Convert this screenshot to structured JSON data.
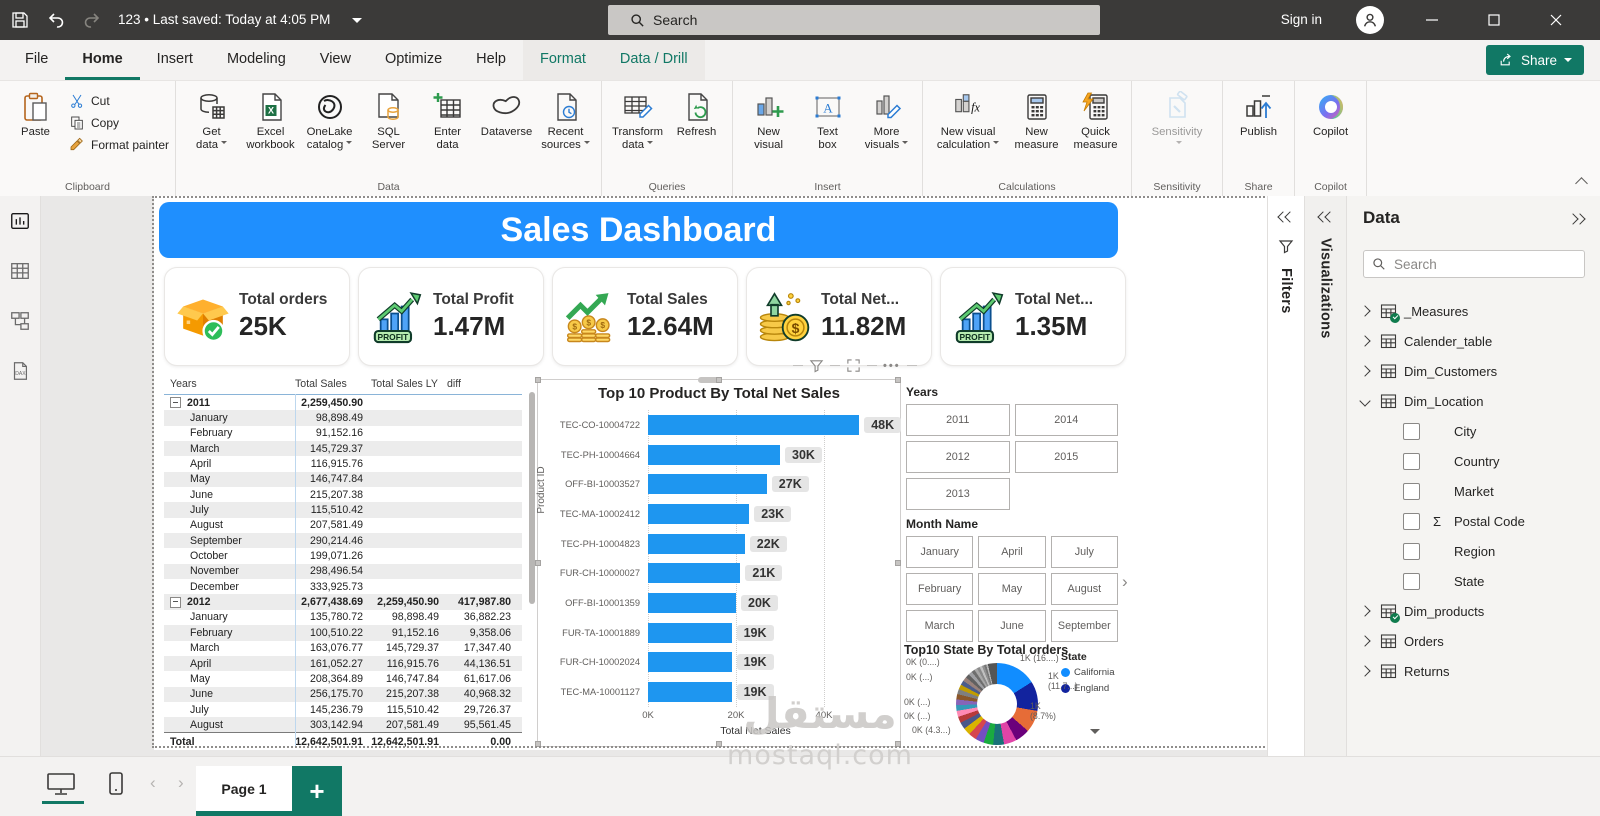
{
  "colors": {
    "accent_teal": "#117865",
    "banner_blue": "#1F8FFE",
    "bar_blue": "#1E96F0",
    "titlebar_dark": "#3B3A39"
  },
  "titlebar": {
    "doc_status": "123 • Last saved: Today at 4:05 PM",
    "search_placeholder": "Search",
    "sign_in_label": "Sign in"
  },
  "menu": {
    "items": [
      {
        "label": "File"
      },
      {
        "label": "Home",
        "active": true
      },
      {
        "label": "Insert"
      },
      {
        "label": "Modeling"
      },
      {
        "label": "View"
      },
      {
        "label": "Optimize"
      },
      {
        "label": "Help"
      },
      {
        "label": "Format",
        "accent": true
      },
      {
        "label": "Data / Drill",
        "accent": true
      }
    ],
    "share_label": "Share"
  },
  "ribbon": {
    "groups": [
      {
        "label": "Clipboard",
        "type": "clipboard",
        "paste": {
          "label": "Paste",
          "icon": "paste"
        },
        "small": [
          {
            "label": "Cut",
            "icon": "cut"
          },
          {
            "label": "Copy",
            "icon": "copy"
          },
          {
            "label": "Format painter",
            "icon": "fmtpainter"
          }
        ]
      },
      {
        "label": "Data",
        "buttons": [
          {
            "lines": [
              "Get",
              "data"
            ],
            "icon": "getdata",
            "dd": true
          },
          {
            "lines": [
              "Excel",
              "workbook"
            ],
            "icon": "excel"
          },
          {
            "lines": [
              "OneLake",
              "catalog"
            ],
            "icon": "onelake",
            "dd": true
          },
          {
            "lines": [
              "SQL",
              "Server"
            ],
            "icon": "sql"
          },
          {
            "lines": [
              "Enter",
              "data"
            ],
            "icon": "enterdata"
          },
          {
            "lines": [
              "Dataverse"
            ],
            "icon": "dataverse"
          },
          {
            "lines": [
              "Recent",
              "sources"
            ],
            "icon": "recent",
            "dd": true
          }
        ]
      },
      {
        "label": "Queries",
        "buttons": [
          {
            "lines": [
              "Transform",
              "data"
            ],
            "icon": "transform",
            "dd": true
          },
          {
            "lines": [
              "Refresh"
            ],
            "icon": "refresh"
          }
        ]
      },
      {
        "label": "Insert",
        "buttons": [
          {
            "lines": [
              "New",
              "visual"
            ],
            "icon": "newvisual"
          },
          {
            "lines": [
              "Text",
              "box"
            ],
            "icon": "textbox"
          },
          {
            "lines": [
              "More",
              "visuals"
            ],
            "icon": "morevisuals",
            "dd": true
          }
        ]
      },
      {
        "label": "Calculations",
        "buttons": [
          {
            "lines": [
              "New visual",
              "calculation"
            ],
            "icon": "newcalc",
            "dd": true,
            "wide": true
          },
          {
            "lines": [
              "New",
              "measure"
            ],
            "icon": "newmeasure"
          },
          {
            "lines": [
              "Quick",
              "measure"
            ],
            "icon": "quickmeasure"
          }
        ]
      },
      {
        "label": "Sensitivity",
        "buttons": [
          {
            "lines": [
              "Sensitivity"
            ],
            "icon": "sensitivity",
            "dd": true,
            "disabled": true,
            "wide": true
          }
        ]
      },
      {
        "label": "Share",
        "buttons": [
          {
            "lines": [
              "Publish"
            ],
            "icon": "publish"
          }
        ]
      },
      {
        "label": "Copilot",
        "buttons": [
          {
            "lines": [
              "Copilot"
            ],
            "icon": "copilot"
          }
        ]
      }
    ]
  },
  "view_strip": [
    {
      "name": "report-view",
      "active": true
    },
    {
      "name": "table-view"
    },
    {
      "name": "model-view"
    },
    {
      "name": "dax-query-view"
    }
  ],
  "canvas": {
    "banner_title": "Sales Dashboard",
    "cards": [
      {
        "title": "Total orders",
        "value": "25K",
        "icon": "orders-box"
      },
      {
        "title": "Total Profit",
        "value": "1.47M",
        "icon": "profit-chart"
      },
      {
        "title": "Total Sales",
        "value": "12.64M",
        "icon": "sales-coins"
      },
      {
        "title": "Total Net...",
        "value": "11.82M",
        "icon": "net-coins"
      },
      {
        "title": "Total Net...",
        "value": "1.35M",
        "icon": "profit-chart"
      }
    ],
    "matrix": {
      "headers": [
        "Years",
        "Total Sales",
        "Total Sales LY",
        "diff"
      ],
      "rows": [
        {
          "label": "2011",
          "year": true,
          "ts": "2,259,450.90",
          "ly": "",
          "diff": ""
        },
        {
          "label": "January",
          "ts": "98,898.49",
          "ly": "",
          "diff": ""
        },
        {
          "label": "February",
          "ts": "91,152.16",
          "ly": "",
          "diff": ""
        },
        {
          "label": "March",
          "ts": "145,729.37",
          "ly": "",
          "diff": ""
        },
        {
          "label": "April",
          "ts": "116,915.76",
          "ly": "",
          "diff": ""
        },
        {
          "label": "May",
          "ts": "146,747.84",
          "ly": "",
          "diff": ""
        },
        {
          "label": "June",
          "ts": "215,207.38",
          "ly": "",
          "diff": ""
        },
        {
          "label": "July",
          "ts": "115,510.42",
          "ly": "",
          "diff": ""
        },
        {
          "label": "August",
          "ts": "207,581.49",
          "ly": "",
          "diff": ""
        },
        {
          "label": "September",
          "ts": "290,214.46",
          "ly": "",
          "diff": ""
        },
        {
          "label": "October",
          "ts": "199,071.26",
          "ly": "",
          "diff": ""
        },
        {
          "label": "November",
          "ts": "298,496.54",
          "ly": "",
          "diff": ""
        },
        {
          "label": "December",
          "ts": "333,925.73",
          "ly": "",
          "diff": ""
        },
        {
          "label": "2012",
          "year": true,
          "ts": "2,677,438.69",
          "ly": "2,259,450.90",
          "diff": "417,987.80"
        },
        {
          "label": "January",
          "ts": "135,780.72",
          "ly": "98,898.49",
          "diff": "36,882.23"
        },
        {
          "label": "February",
          "ts": "100,510.22",
          "ly": "91,152.16",
          "diff": "9,358.06"
        },
        {
          "label": "March",
          "ts": "163,076.77",
          "ly": "145,729.37",
          "diff": "17,347.40"
        },
        {
          "label": "April",
          "ts": "161,052.27",
          "ly": "116,915.76",
          "diff": "44,136.51"
        },
        {
          "label": "May",
          "ts": "208,364.89",
          "ly": "146,747.84",
          "diff": "61,617.06"
        },
        {
          "label": "June",
          "ts": "256,175.70",
          "ly": "215,207.38",
          "diff": "40,968.32"
        },
        {
          "label": "July",
          "ts": "145,236.79",
          "ly": "115,510.42",
          "diff": "29,726.37"
        },
        {
          "label": "August",
          "ts": "303,142.94",
          "ly": "207,581.49",
          "diff": "95,561.45"
        }
      ],
      "total": {
        "label": "Total",
        "ts": "12,642,501.91",
        "ly": "12,642,501.91",
        "diff": "0.00"
      }
    },
    "bar_chart": {
      "type": "bar",
      "title": "Top 10 Product By Total Net Sales",
      "xlabel": "Total Net Sales",
      "ylabel": "Product ID",
      "x_ticks": [
        "0K",
        "20K",
        "40K"
      ],
      "xlim": [
        0,
        48
      ],
      "categories": [
        "TEC-CO-10004722",
        "TEC-PH-10004664",
        "OFF-BI-10003527",
        "TEC-MA-10002412",
        "TEC-PH-10004823",
        "FUR-CH-10000027",
        "OFF-BI-10001359",
        "FUR-TA-10001889",
        "FUR-CH-10002024",
        "TEC-MA-10001127"
      ],
      "values": [
        48,
        30,
        27,
        23,
        22,
        21,
        20,
        19,
        19,
        19
      ],
      "labels": [
        "48K",
        "30K",
        "27K",
        "23K",
        "22K",
        "21K",
        "20K",
        "19K",
        "19K",
        "19K"
      ],
      "bar_color": "#1E96F0"
    },
    "slicers": {
      "years": {
        "title": "Years",
        "options": [
          "2011",
          "2014",
          "2012",
          "2015",
          "2013"
        ]
      },
      "months": {
        "title": "Month Name",
        "options": [
          "January",
          "April",
          "July",
          "February",
          "May",
          "August",
          "March",
          "June",
          "September"
        ]
      }
    },
    "donut": {
      "type": "pie",
      "title": "Top10 State By Total orders",
      "legend_title": "State",
      "legend": [
        {
          "label": "California",
          "color": "#118DFF"
        },
        {
          "label": "England",
          "color": "#12239E"
        }
      ],
      "labels_right": [
        "1K (16....)",
        "1K (11.7...)",
        "1K (8.7%)"
      ],
      "labels_left": [
        "0K (0....)",
        "0K (...)",
        "0K (...)",
        "0K (...)",
        "0K (4.3...)"
      ],
      "segments": [
        [
          "#118DFF",
          16.0
        ],
        [
          "#12239E",
          11.7
        ],
        [
          "#E66C37",
          8.7
        ],
        [
          "#6B007B",
          5.8
        ],
        [
          "#E044A7",
          5.0
        ],
        [
          "#197278",
          4.3
        ],
        [
          "#1AAB40",
          3.8
        ],
        [
          "#744EC2",
          3.4
        ],
        [
          "#D64550",
          3.1
        ],
        [
          "#D9B300",
          2.9
        ],
        [
          "#4A588A",
          2.7
        ],
        [
          "#B73A3A",
          2.5
        ],
        [
          "#FF8AB4",
          2.4
        ],
        [
          "#3599B8",
          2.3
        ],
        [
          "#8764B8",
          2.2
        ],
        [
          "#8B572A",
          2.1
        ],
        [
          "#7F7F7F",
          2.0
        ],
        [
          "#C19C00",
          1.9
        ],
        [
          "#4C5D8A",
          1.8
        ],
        [
          "#98817B",
          1.7
        ],
        [
          "#606060",
          1.6
        ],
        [
          "#9FA0A4",
          1.5
        ],
        [
          "#6E6E6E",
          1.3
        ],
        [
          "#A8A8A8",
          1.2
        ],
        [
          "#8A8A8A",
          1.1
        ],
        [
          "#C0C0C0",
          1.0
        ],
        [
          "#909090",
          0.9
        ],
        [
          "#757575",
          0.8
        ],
        [
          "#B5B5B5",
          0.7
        ],
        [
          "#555555",
          1.6
        ]
      ]
    },
    "watermark": {
      "line1": "مستقل",
      "line2": "mostaql.com"
    }
  },
  "panes": {
    "filters_label": "Filters",
    "visualizations_label": "Visualizations",
    "data": {
      "title": "Data",
      "search_placeholder": "Search",
      "items": [
        {
          "kind": "table",
          "badge": true,
          "label": "_Measures"
        },
        {
          "kind": "table",
          "label": "Calender_table"
        },
        {
          "kind": "table",
          "label": "Dim_Customers"
        },
        {
          "kind": "table",
          "expanded": true,
          "label": "Dim_Location"
        },
        {
          "kind": "field",
          "label": "City"
        },
        {
          "kind": "field",
          "label": "Country"
        },
        {
          "kind": "field",
          "label": "Market"
        },
        {
          "kind": "field",
          "sigma": true,
          "label": "Postal Code"
        },
        {
          "kind": "field",
          "label": "Region"
        },
        {
          "kind": "field",
          "label": "State"
        },
        {
          "kind": "table",
          "badge": true,
          "label": "Dim_products"
        },
        {
          "kind": "table",
          "label": "Orders"
        },
        {
          "kind": "table",
          "label": "Returns"
        }
      ]
    }
  },
  "pagebar": {
    "page_label": "Page 1"
  }
}
